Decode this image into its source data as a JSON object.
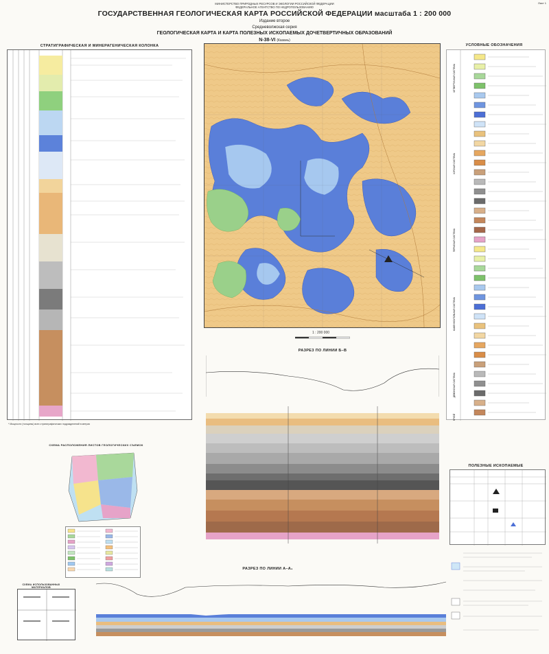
{
  "header": {
    "ministry_line1": "МИНИСТЕРСТВО ПРИРОДНЫХ РЕСУРСОВ И ЭКОЛОГИИ РОССИЙСКОЙ ФЕДЕРАЦИИ",
    "ministry_line2": "ФЕДЕРАЛЬНОЕ АГЕНТСТВО ПО НЕДРОПОЛЬЗОВАНИЮ",
    "title": "ГОСУДАРСТВЕННАЯ ГЕОЛОГИЧЕСКАЯ КАРТА РОССИЙСКОЙ ФЕДЕРАЦИИ масштаба 1 : 200 000",
    "edition": "Издание второе",
    "series": "Средневолжская серия",
    "map_title": "ГЕОЛОГИЧЕСКАЯ КАРТА И КАРТА ПОЛЕЗНЫХ ИСКОПАЕМЫХ ДОЧЕТВЕРТИЧНЫХ ОБРАЗОВАНИЙ",
    "sheet_code": "N-38-VI",
    "sheet_name": "(Казань)",
    "sheet_number": "Лист 1"
  },
  "stratigraphic_column": {
    "title": "СТРАТИГРАФИЧЕСКАЯ И МИНЕРАГЕНИЧЕСКАЯ КОЛОНКА",
    "footnote": "* Мощности (толщины) всех стратиграфических подразделений в метрах"
  },
  "legend": {
    "title": "УСЛОВНЫЕ ОБОЗНАЧЕНИЯ",
    "section_labels": [
      "ЧЕТВЕРТИЧНАЯ СИСТЕМА",
      "ЮРСКАЯ СИСТЕМА",
      "ПЕРМСКАЯ СИСТЕМА",
      "КАМЕННОУГОЛЬНАЯ СИСТЕМА",
      "ДЕВОНСКАЯ СИСТЕМА",
      "АРХЕЙ"
    ],
    "colors": [
      "#f5e88a",
      "#e8f0a8",
      "#a8d89a",
      "#7ec26b",
      "#a9c9ee",
      "#6f95e0",
      "#4c6fd6",
      "#cfe3f7",
      "#e9c27d",
      "#f2d7a3",
      "#e6a760",
      "#d98d48",
      "#c9a07a",
      "#b9b9b9",
      "#8f8f8f",
      "#6b6b6b",
      "#d8b08a",
      "#c4875c",
      "#a5684a",
      "#e6a3c8"
    ]
  },
  "map": {
    "scale_label": "1 : 200 000",
    "sheet_label": "N-38-VI"
  },
  "section_ab": {
    "title": "РАЗРЕЗ ПО ЛИНИИ Б–В"
  },
  "section_a": {
    "title": "РАЗРЕЗ ПО ЛИНИИ А–А₁"
  },
  "scheme_geo": {
    "title": "СХЕМА РАСПОЛОЖЕНИЯ ЛИСТОВ ГЕОЛОГИЧЕСКИХ СЪЕМОК"
  },
  "scheme_used": {
    "title": "СХЕМА ИСПОЛЬЗОВАННЫХ МАТЕРИАЛОВ"
  },
  "minerals": {
    "title": "ПОЛЕЗНЫЕ ИСКОПАЕМЫЕ"
  }
}
